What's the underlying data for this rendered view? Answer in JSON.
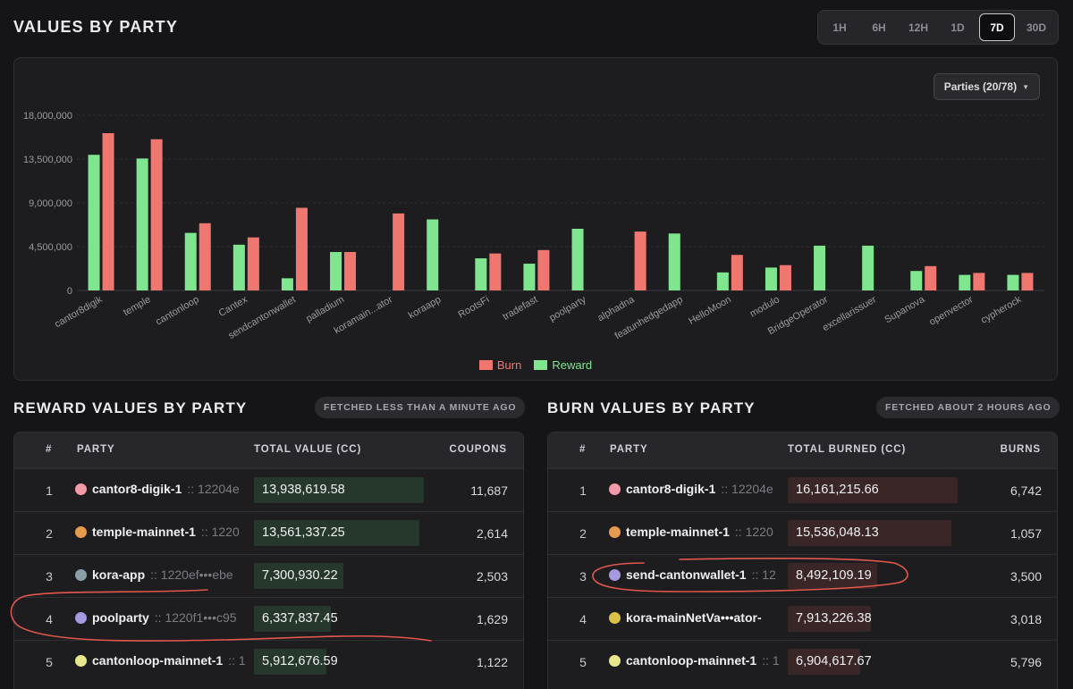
{
  "header": {
    "title": "VALUES BY PARTY",
    "ranges": [
      "1H",
      "6H",
      "12H",
      "1D",
      "7D",
      "30D"
    ],
    "active_range": "7D"
  },
  "chart": {
    "parties_button": "Parties (20/78)"
  },
  "chart_data": {
    "type": "bar",
    "categories": [
      "cantor8digik",
      "temple",
      "cantonloop",
      "Cantex",
      "sendcantonwallet",
      "palladium",
      "koramain...ator",
      "koraapp",
      "RootsFi",
      "tradefast",
      "poolparty",
      "alphadna",
      "featunhedgedapp",
      "HelloMoon",
      "modulo",
      "BridgeOperator",
      "excellarissuer",
      "Supanova",
      "openvector",
      "cypherock"
    ],
    "series": [
      {
        "name": "Reward",
        "color": "#7fe58f",
        "values": [
          13938619.58,
          13561337.25,
          5912676.59,
          4700000,
          1250000,
          3950000,
          0,
          7300930.22,
          3300000,
          2750000,
          6337837.45,
          0,
          5850000,
          1850000,
          2350000,
          4600000,
          4600000,
          2000000,
          1600000,
          1600000
        ]
      },
      {
        "name": "Burn",
        "color": "#f0776f",
        "values": [
          16161215.66,
          15536048.13,
          6904617.67,
          5450000,
          8492109.19,
          3950000,
          7913226.38,
          0,
          3800000,
          4150000,
          0,
          6050000,
          0,
          3650000,
          2600000,
          0,
          0,
          2500000,
          1800000,
          1800000
        ]
      }
    ],
    "legend": [
      "Burn",
      "Reward"
    ],
    "yticks": [
      "0",
      "4,500,000",
      "9,000,000",
      "13,500,000",
      "18,000,000"
    ],
    "ylim": [
      0,
      18000000
    ],
    "grid": true,
    "legend_position": "bottom"
  },
  "reward": {
    "title": "REWARD VALUES BY PARTY",
    "fetched": "FETCHED LESS THAN A MINUTE AGO",
    "columns": [
      "#",
      "PARTY",
      "TOTAL VALUE (CC)",
      "COUPONS"
    ],
    "max_value": 13938619.58,
    "rows": [
      {
        "rank": "1",
        "name": "cantor8-digik-1",
        "id": ":: 12204e",
        "value": "13,938,619.58",
        "value_num": 13938619.58,
        "count": "11,687",
        "avatar": "#f29aa8"
      },
      {
        "rank": "2",
        "name": "temple-mainnet-1",
        "id": ":: 1220",
        "value": "13,561,337.25",
        "value_num": 13561337.25,
        "count": "2,614",
        "avatar": "#e69a4d"
      },
      {
        "rank": "3",
        "name": "kora-app",
        "id": ":: 1220ef•••ebe",
        "value": "7,300,930.22",
        "value_num": 7300930.22,
        "count": "2,503",
        "avatar": "#8aa0a8"
      },
      {
        "rank": "4",
        "name": "poolparty",
        "id": ":: 1220f1•••c95",
        "value": "6,337,837.45",
        "value_num": 6337837.45,
        "count": "1,629",
        "avatar": "#a59ae0"
      },
      {
        "rank": "5",
        "name": "cantonloop-mainnet-1",
        "id": ":: 1",
        "value": "5,912,676.59",
        "value_num": 5912676.59,
        "count": "1,122",
        "avatar": "#e6e68c"
      }
    ]
  },
  "burn": {
    "title": "BURN VALUES BY PARTY",
    "fetched": "FETCHED ABOUT 2 HOURS AGO",
    "columns": [
      "#",
      "PARTY",
      "TOTAL BURNED (CC)",
      "BURNS"
    ],
    "max_value": 16161215.66,
    "rows": [
      {
        "rank": "1",
        "name": "cantor8-digik-1",
        "id": ":: 12204e",
        "value": "16,161,215.66",
        "value_num": 16161215.66,
        "count": "6,742",
        "avatar": "#f29aa8"
      },
      {
        "rank": "2",
        "name": "temple-mainnet-1",
        "id": ":: 1220",
        "value": "15,536,048.13",
        "value_num": 15536048.13,
        "count": "1,057",
        "avatar": "#e69a4d"
      },
      {
        "rank": "3",
        "name": "send-cantonwallet-1",
        "id": ":: 12",
        "value": "8,492,109.19",
        "value_num": 8492109.19,
        "count": "3,500",
        "avatar": "#a59ae0"
      },
      {
        "rank": "4",
        "name": "kora-mainNetVa•••ator-",
        "id": "",
        "value": "7,913,226.38",
        "value_num": 7913226.38,
        "count": "3,018",
        "avatar": "#d8c24a"
      },
      {
        "rank": "5",
        "name": "cantonloop-mainnet-1",
        "id": ":: 1",
        "value": "6,904,617.67",
        "value_num": 6904617.67,
        "count": "5,796",
        "avatar": "#e6e68c"
      }
    ]
  }
}
